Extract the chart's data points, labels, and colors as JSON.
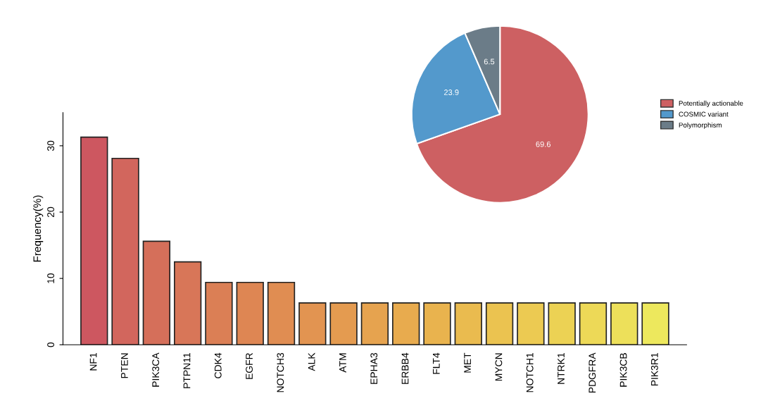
{
  "chart_data": [
    {
      "type": "bar",
      "ylabel": "Frequency(%)",
      "categories": [
        "NF1",
        "PTEN",
        "PIK3CA",
        "PTPN11",
        "CDK4",
        "EGFR",
        "NOTCH3",
        "ALK",
        "ATM",
        "EPHA3",
        "ERBB4",
        "FLT4",
        "MET",
        "MYCN",
        "NOTCH1",
        "NTRK1",
        "PDGFRA",
        "PIK3CB",
        "PIK3R1"
      ],
      "values": [
        31.3,
        28.1,
        15.6,
        12.5,
        9.4,
        9.4,
        9.4,
        6.3,
        6.3,
        6.3,
        6.3,
        6.3,
        6.3,
        6.3,
        6.3,
        6.3,
        6.3,
        6.3,
        6.3
      ],
      "colors": [
        "#cd5760",
        "#d2665d",
        "#d56f5a",
        "#d87658",
        "#db7f55",
        "#de8653",
        "#e08d52",
        "#e29451",
        "#e49b50",
        "#e6a34f",
        "#e8ab4e",
        "#e9b34e",
        "#eabb4f",
        "#ebc350",
        "#ecca52",
        "#ecd254",
        "#edd957",
        "#ede05a",
        "#ede85d"
      ],
      "ylim": [
        0,
        35
      ],
      "yticks": [
        0,
        10,
        20,
        30
      ],
      "grid": false
    },
    {
      "type": "pie",
      "categories": [
        "Potentially actionable",
        "COSMIC variant",
        "Polymorphism"
      ],
      "values": [
        69.6,
        23.9,
        6.5
      ],
      "colors": [
        "#cd6062",
        "#5399cc",
        "#6b7c88"
      ],
      "data_labels": true,
      "legend": "right"
    }
  ]
}
